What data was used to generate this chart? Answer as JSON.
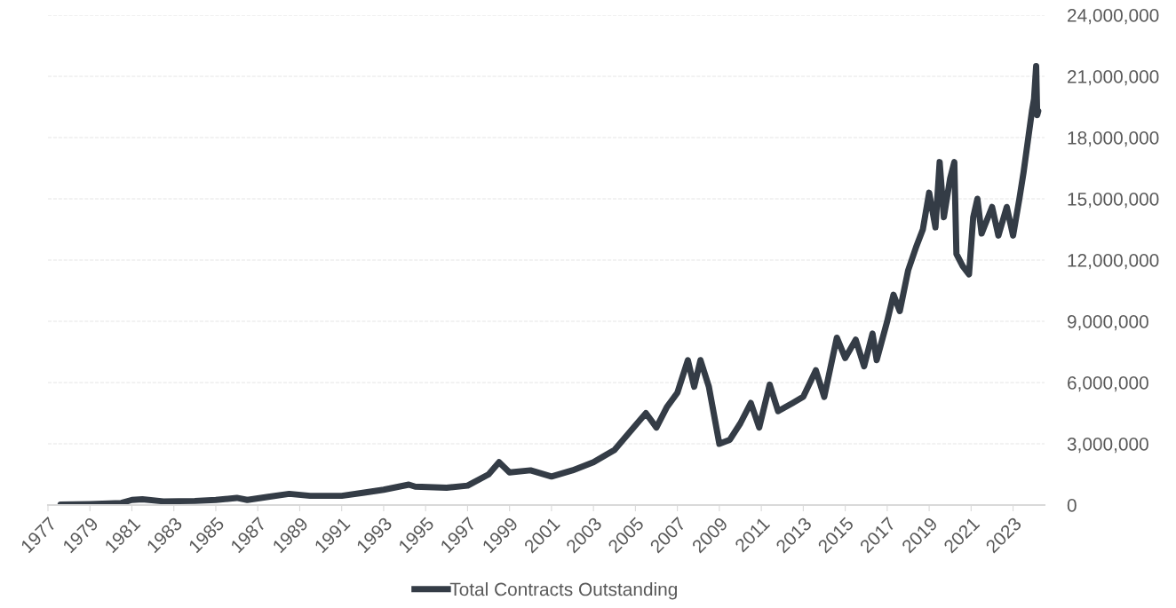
{
  "chart_data": {
    "type": "line",
    "x": [
      1977.6,
      1979,
      1980.5,
      1981,
      1981.5,
      1982.5,
      1984,
      1985,
      1986,
      1986.5,
      1987.5,
      1988.5,
      1989.5,
      1991,
      1992,
      1993,
      1994.2,
      1994.5,
      1996,
      1997,
      1998,
      1998.5,
      1999,
      2000,
      2001,
      2002,
      2003,
      2004,
      2005,
      2005.5,
      2006,
      2006.5,
      2007,
      2007.5,
      2007.8,
      2008.1,
      2008.5,
      2009,
      2009.5,
      2010,
      2010.5,
      2010.9,
      2011.4,
      2011.8,
      2012.5,
      2013,
      2013.6,
      2014,
      2014.6,
      2015,
      2015.5,
      2015.9,
      2016.3,
      2016.5,
      2017,
      2017.3,
      2017.6,
      2018,
      2018.4,
      2018.7,
      2019,
      2019.3,
      2019.5,
      2019.7,
      2020,
      2020.2,
      2020.3,
      2020.6,
      2020.9,
      2021.1,
      2021.3,
      2021.5,
      2022,
      2022.3,
      2022.7,
      2023,
      2023.3,
      2023.5,
      2023.7,
      2023.9,
      2024,
      2024.1,
      2024.15,
      2024.2
    ],
    "series": [
      {
        "name": "Total Contracts Outstanding",
        "color": "#343c46",
        "values": [
          20000,
          50000,
          100000,
          250000,
          280000,
          180000,
          200000,
          250000,
          350000,
          250000,
          400000,
          550000,
          450000,
          450000,
          600000,
          750000,
          1000000,
          900000,
          850000,
          950000,
          1500000,
          2100000,
          1600000,
          1700000,
          1400000,
          1700000,
          2100000,
          2700000,
          3900000,
          4500000,
          3800000,
          4800000,
          5500000,
          7100000,
          5800000,
          7100000,
          5800000,
          3000000,
          3200000,
          4000000,
          5000000,
          3800000,
          5900000,
          4600000,
          5000000,
          5300000,
          6600000,
          5300000,
          8200000,
          7200000,
          8100000,
          6800000,
          8400000,
          7100000,
          9000000,
          10300000,
          9500000,
          11500000,
          12700000,
          13500000,
          15300000,
          13600000,
          16800000,
          14100000,
          16000000,
          16800000,
          12300000,
          11700000,
          11300000,
          14100000,
          15000000,
          13300000,
          14600000,
          13200000,
          14600000,
          13200000,
          15000000,
          16300000,
          17800000,
          19300000,
          19900000,
          21500000,
          19100000,
          19300000
        ]
      }
    ],
    "xlim": [
      1977,
      2024.5
    ],
    "xticks": [
      1977,
      1979,
      1981,
      1983,
      1985,
      1987,
      1989,
      1991,
      1993,
      1995,
      1997,
      1999,
      2001,
      2003,
      2005,
      2007,
      2009,
      2011,
      2013,
      2015,
      2017,
      2019,
      2021,
      2023
    ],
    "ylim": [
      0,
      24000000
    ],
    "yticks": [
      {
        "value": 0,
        "label": "0"
      },
      {
        "value": 3000000,
        "label": "3,000,000"
      },
      {
        "value": 6000000,
        "label": "6,000,000"
      },
      {
        "value": 9000000,
        "label": "9,000,000"
      },
      {
        "value": 12000000,
        "label": "12,000,000"
      },
      {
        "value": 15000000,
        "label": "15,000,000"
      },
      {
        "value": 18000000,
        "label": "18,000,000"
      },
      {
        "value": 21000000,
        "label": "21,000,000"
      },
      {
        "value": 24000000,
        "label": "24,000,000"
      }
    ],
    "grid": "y",
    "legend": "bottom",
    "marker": "none",
    "line_style": "solid"
  }
}
